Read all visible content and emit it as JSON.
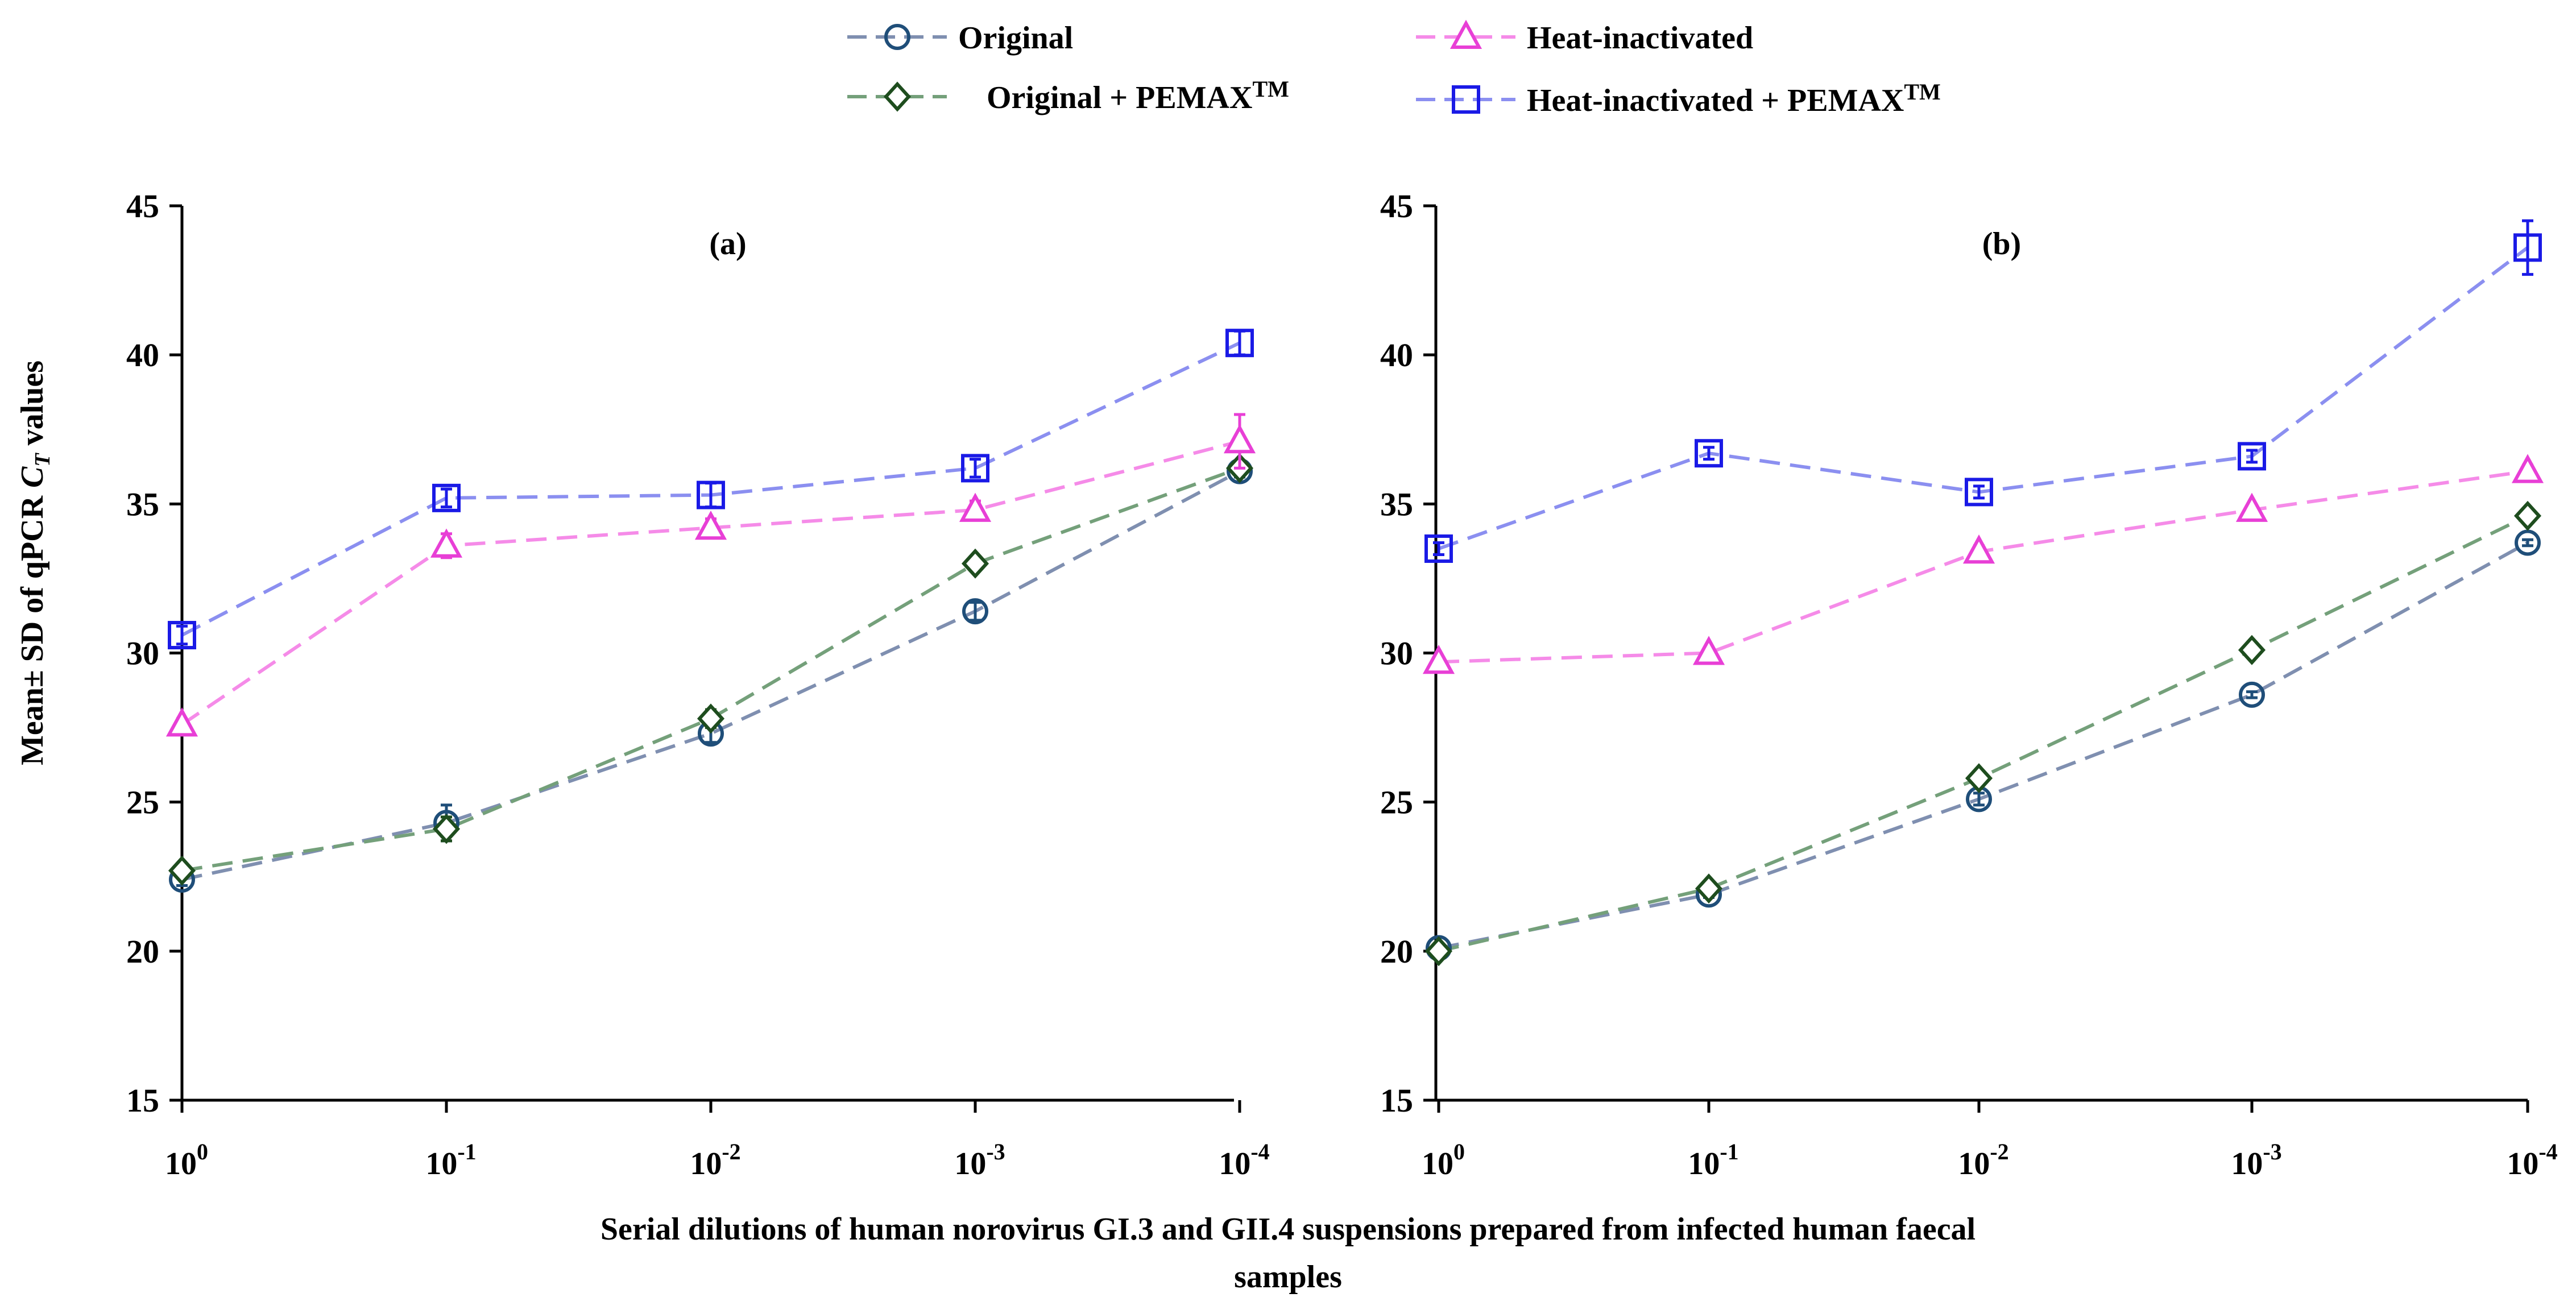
{
  "figure": {
    "xlabel_line1": "Serial dilutions  of human  norovirus  GI.3 and  GII.4 suspensions prepared  from  infected human  faecal",
    "xlabel_line2": "samples",
    "ylabel_prefix": "Mean± SD of  qPCR ",
    "ylabel_ct_main": "C",
    "ylabel_ct_sub": "T",
    "ylabel_suffix": " values",
    "legend": [
      {
        "key": "original",
        "label": "Original",
        "sup": "",
        "color": "#1f4e79",
        "line": "#7f8fb0",
        "marker": "circle"
      },
      {
        "key": "original_pemax",
        "label": "Original  + PEMAX",
        "sup": "TM",
        "color": "#1e4d1e",
        "line": "#74a07a",
        "marker": "diamond"
      },
      {
        "key": "heat",
        "label": "Heat-inactivated",
        "sup": "",
        "color": "#e83fd6",
        "line": "#f58be8",
        "marker": "triangle"
      },
      {
        "key": "heat_pemax",
        "label": "Heat-inactivated  + PEMAX",
        "sup": "TM",
        "color": "#1a1ae6",
        "line": "#8b8ff0",
        "marker": "square"
      }
    ]
  },
  "chart_data": [
    {
      "type": "line",
      "title": "(a)",
      "categories": [
        "10^0",
        "10^-1",
        "10^-2",
        "10^-3",
        "10^-4"
      ],
      "tick_base": "10",
      "tick_exponents": [
        "0",
        "-1",
        "-2",
        "-3",
        "-4"
      ],
      "ylim": [
        15,
        45
      ],
      "yticks": [
        15,
        20,
        25,
        30,
        35,
        40,
        45
      ],
      "series": [
        {
          "name": "Original",
          "values": [
            22.4,
            24.3,
            27.3,
            31.4,
            36.1
          ],
          "sd": [
            0.2,
            0.6,
            0.3,
            0.3,
            0.2
          ]
        },
        {
          "name": "Original + PEMAX",
          "values": [
            22.7,
            24.1,
            27.8,
            33.0,
            36.2
          ],
          "sd": [
            0.2,
            0.4,
            0.3,
            0.2,
            0.2
          ]
        },
        {
          "name": "Heat-inactivated",
          "values": [
            27.6,
            33.6,
            34.2,
            34.8,
            37.1
          ],
          "sd": [
            0.2,
            0.4,
            0.3,
            0.3,
            0.9
          ]
        },
        {
          "name": "Heat-inactivated + PEMAX",
          "values": [
            30.6,
            35.2,
            35.3,
            36.2,
            40.4
          ],
          "sd": [
            0.3,
            0.3,
            0.4,
            0.3,
            0.4
          ]
        }
      ]
    },
    {
      "type": "line",
      "title": "(b)",
      "categories": [
        "10^0",
        "10^-1",
        "10^-2",
        "10^-3",
        "10^-4"
      ],
      "tick_base": "10",
      "tick_exponents": [
        "0",
        "-1",
        "-2",
        "-3",
        "-4"
      ],
      "ylim": [
        15,
        45
      ],
      "yticks": [
        15,
        20,
        25,
        30,
        35,
        40,
        45
      ],
      "series": [
        {
          "name": "Original",
          "values": [
            20.1,
            21.9,
            25.1,
            28.6,
            33.7
          ],
          "sd": [
            0.1,
            0.1,
            0.2,
            0.1,
            0.1
          ]
        },
        {
          "name": "Original + PEMAX",
          "values": [
            20.0,
            22.1,
            25.8,
            30.1,
            34.6
          ],
          "sd": [
            0.1,
            0.1,
            0.2,
            0.1,
            0.1
          ]
        },
        {
          "name": "Heat-inactivated",
          "values": [
            29.7,
            30.0,
            33.4,
            34.8,
            36.1
          ],
          "sd": [
            0.1,
            0.1,
            0.2,
            0.1,
            0.2
          ]
        },
        {
          "name": "Heat-inactivated + PEMAX",
          "values": [
            33.5,
            36.7,
            35.4,
            36.6,
            43.6
          ],
          "sd": [
            0.2,
            0.2,
            0.2,
            0.2,
            0.9
          ]
        }
      ]
    }
  ]
}
